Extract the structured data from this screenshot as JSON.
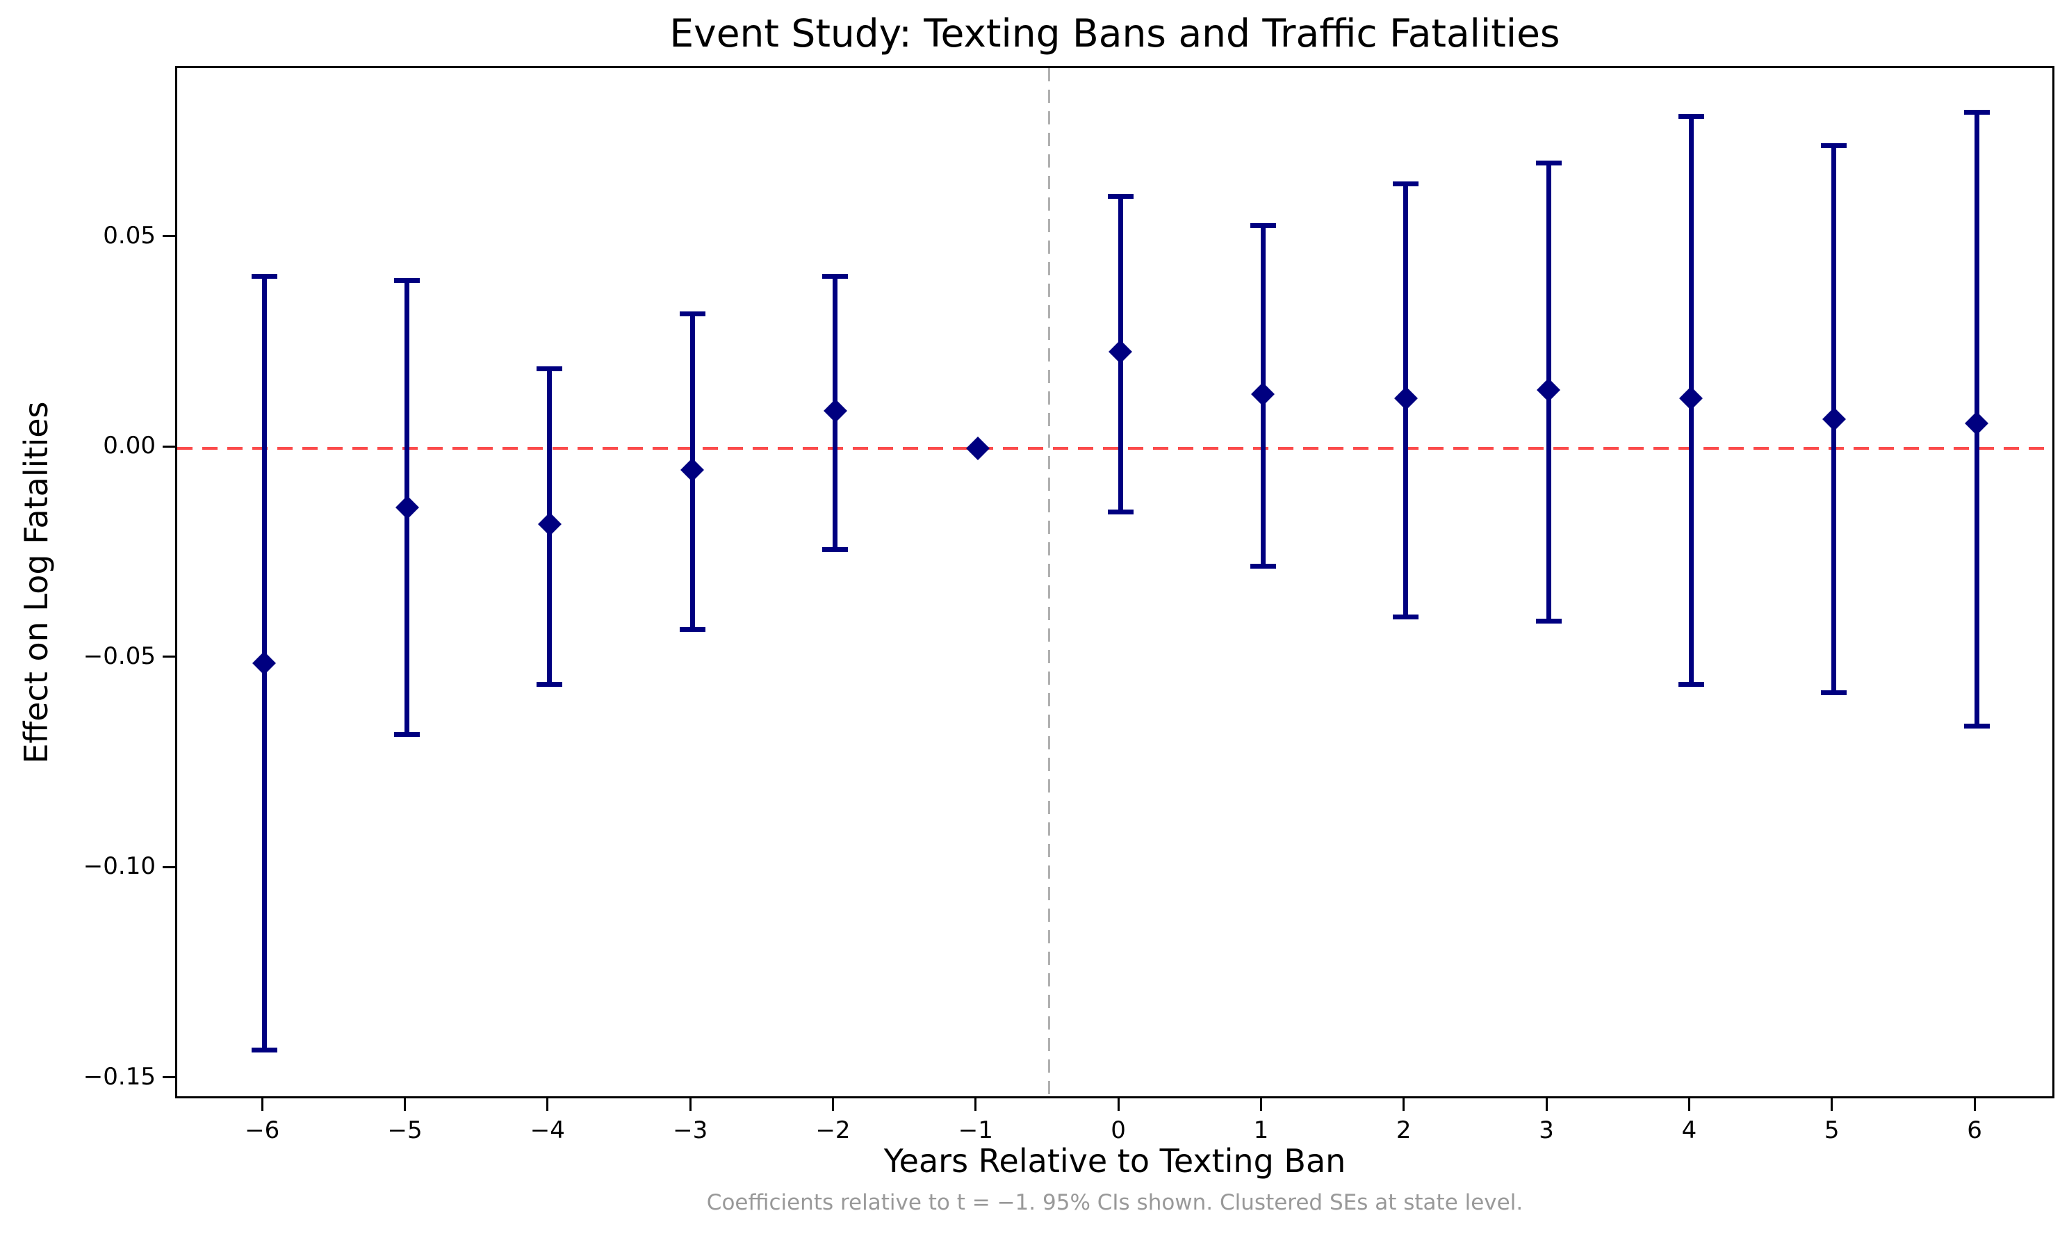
{
  "chart_data": {
    "type": "scatter",
    "title": "Event Study: Texting Bans and Traffic Fatalities",
    "xlabel": "Years Relative to Texting Ban",
    "ylabel": "Effect on Log Fatalities",
    "footnote": "Coefficients relative to t = −1. 95% CIs shown. Clustered SEs at state level.",
    "x": [
      -6,
      -5,
      -4,
      -3,
      -2,
      -1,
      0,
      1,
      2,
      3,
      4,
      5,
      6
    ],
    "series": [
      {
        "name": "coefficient",
        "values": [
          -0.051,
          -0.014,
          -0.018,
          -0.005,
          0.009,
          0.0,
          0.023,
          0.013,
          0.012,
          0.014,
          0.012,
          0.007,
          0.006
        ]
      },
      {
        "name": "ci_lower",
        "values": [
          -0.143,
          -0.068,
          -0.056,
          -0.043,
          -0.024,
          0.0,
          -0.015,
          -0.028,
          -0.04,
          -0.041,
          -0.056,
          -0.058,
          -0.066
        ]
      },
      {
        "name": "ci_upper",
        "values": [
          0.041,
          0.04,
          0.019,
          0.032,
          0.041,
          0.0,
          0.06,
          0.053,
          0.063,
          0.068,
          0.079,
          0.072,
          0.08
        ]
      }
    ],
    "reference_period": -1,
    "zero_line_y": 0,
    "event_line_x": -0.5,
    "xlim": [
      -6.61,
      6.56
    ],
    "ylim": [
      -0.155,
      0.0905
    ],
    "y_ticks": [
      0.05,
      0.0,
      -0.05,
      -0.1,
      -0.15
    ],
    "y_tick_labels": [
      "0.05",
      "0.00",
      "−0.05",
      "−0.10",
      "−0.15"
    ],
    "x_tick_labels": [
      "−6",
      "−5",
      "−4",
      "−3",
      "−2",
      "−1",
      "0",
      "1",
      "2",
      "3",
      "4",
      "5",
      "6"
    ],
    "grid": false,
    "legend_position": "none",
    "marker_shape": "diamond",
    "colors": {
      "marker": "#000080",
      "error_bar": "#000080",
      "zero_line": "#fb4b4b",
      "event_line": "#b0b0b0",
      "text": "#000000",
      "footnote": "#999999",
      "background": "#ffffff"
    }
  }
}
